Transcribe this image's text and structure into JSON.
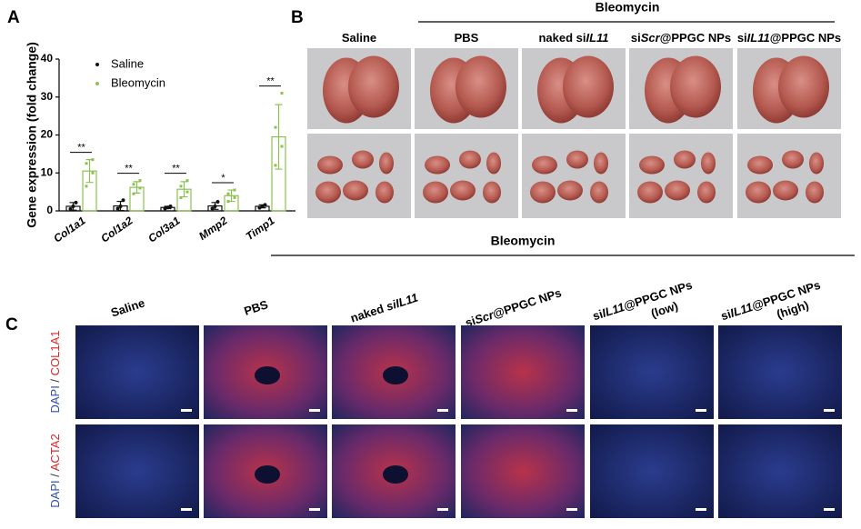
{
  "panel_labels": [
    "A",
    "B",
    "C"
  ],
  "chart_data": {
    "type": "bar",
    "ylabel": "Gene expression (fold change)",
    "categories": [
      "Col1a1",
      "Col1a2",
      "Col3a1",
      "Mmp2",
      "Timp1"
    ],
    "ylim": [
      0,
      40
    ],
    "yticks": [
      0,
      10,
      20,
      30,
      40
    ],
    "series": [
      {
        "name": "Saline",
        "color": "#111111",
        "values": [
          1.2,
          1.3,
          0.9,
          1.3,
          1.2
        ],
        "errors": [
          1.0,
          1.2,
          0.3,
          0.9,
          0.4
        ],
        "points": [
          [
            0.5,
            1.2,
            2.2
          ],
          [
            0.6,
            1.2,
            2.8
          ],
          [
            0.6,
            0.9,
            1.2
          ],
          [
            0.6,
            1.2,
            2.4
          ],
          [
            0.8,
            1.2,
            1.6
          ]
        ]
      },
      {
        "name": "Bleomycin",
        "color": "#8cc152",
        "values": [
          10.5,
          6.2,
          5.7,
          4.0,
          19.5
        ],
        "errors": [
          3.0,
          1.5,
          2.0,
          1.5,
          8.5
        ],
        "points": [
          [
            6.5,
            10,
            12.5,
            13.5
          ],
          [
            4.5,
            6,
            7,
            8
          ],
          [
            3.5,
            5,
            6.5,
            8
          ],
          [
            2.5,
            3.5,
            4.5,
            5.5
          ],
          [
            12,
            17,
            22,
            31
          ]
        ]
      }
    ],
    "significance": [
      "**",
      "**",
      "**",
      "*",
      "**"
    ]
  },
  "panel_b": {
    "group_label": "Bleomycin",
    "columns": [
      [
        "Saline"
      ],
      [
        "PBS"
      ],
      [
        "naked si",
        "IL11"
      ],
      [
        "si",
        "Scr",
        "@PPGC NPs"
      ],
      [
        "si",
        "IL11",
        "@PPGC NPs"
      ]
    ]
  },
  "panel_c": {
    "group_label": "Bleomycin",
    "columns": [
      [
        [
          "Saline"
        ]
      ],
      [
        [
          "PBS"
        ]
      ],
      [
        [
          "naked ",
          "siIL11"
        ]
      ],
      [
        [
          "si",
          "Scr",
          "@PPGC NPs"
        ]
      ],
      [
        [
          "si",
          "IL11",
          "@PPGC NPs"
        ],
        [
          "(low)"
        ]
      ],
      [
        [
          "si",
          "IL11",
          "@PPGC NPs"
        ],
        [
          "(high)"
        ]
      ]
    ],
    "rows": [
      [
        "DAPI",
        " / ",
        "COL1A1"
      ],
      [
        "DAPI",
        " / ",
        "ACTA2"
      ]
    ]
  }
}
